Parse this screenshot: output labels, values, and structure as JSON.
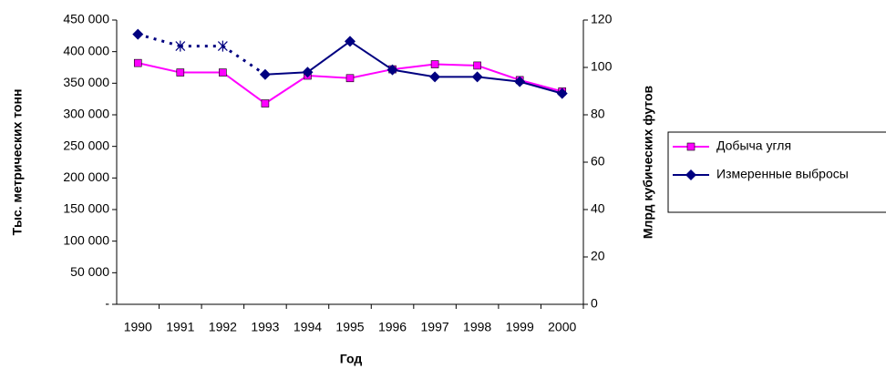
{
  "chart_data": {
    "type": "line",
    "x_label": "Год",
    "y_label": "Тыс. метрических тонн",
    "y2_label": "Млрд кубических футов",
    "categories": [
      "1990",
      "1991",
      "1992",
      "1993",
      "1994",
      "1995",
      "1996",
      "1997",
      "1998",
      "1999",
      "2000"
    ],
    "ylim": [
      0,
      450000
    ],
    "yticks": [
      {
        "value": 0,
        "label": "-"
      },
      {
        "value": 50000,
        "label": "50 000"
      },
      {
        "value": 100000,
        "label": "100 000"
      },
      {
        "value": 150000,
        "label": "150 000"
      },
      {
        "value": 200000,
        "label": "200 000"
      },
      {
        "value": 250000,
        "label": "250 000"
      },
      {
        "value": 300000,
        "label": "300 000"
      },
      {
        "value": 350000,
        "label": "350 000"
      },
      {
        "value": 400000,
        "label": "400 000"
      },
      {
        "value": 450000,
        "label": "450 000"
      }
    ],
    "y2lim": [
      0,
      120
    ],
    "y2ticks": [
      0,
      20,
      40,
      60,
      80,
      100,
      120
    ],
    "legend": "right",
    "series": [
      {
        "name": "Добыча угля",
        "color": "#ff00ff",
        "marker": "square",
        "values": [
          382000,
          367000,
          367000,
          318000,
          362000,
          358000,
          372000,
          380000,
          378000,
          355000,
          337000
        ]
      },
      {
        "name": "Измеренные выбросы",
        "color": "#000080",
        "marker": "diamond",
        "axis": "y2",
        "marker_styles": [
          "diamond",
          "asterisk",
          "asterisk",
          "diamond",
          "diamond",
          "diamond",
          "diamond",
          "diamond",
          "diamond",
          "diamond",
          "diamond"
        ],
        "values": [
          114,
          109,
          109,
          97,
          98,
          111,
          99,
          96,
          96,
          94,
          89
        ]
      }
    ]
  }
}
